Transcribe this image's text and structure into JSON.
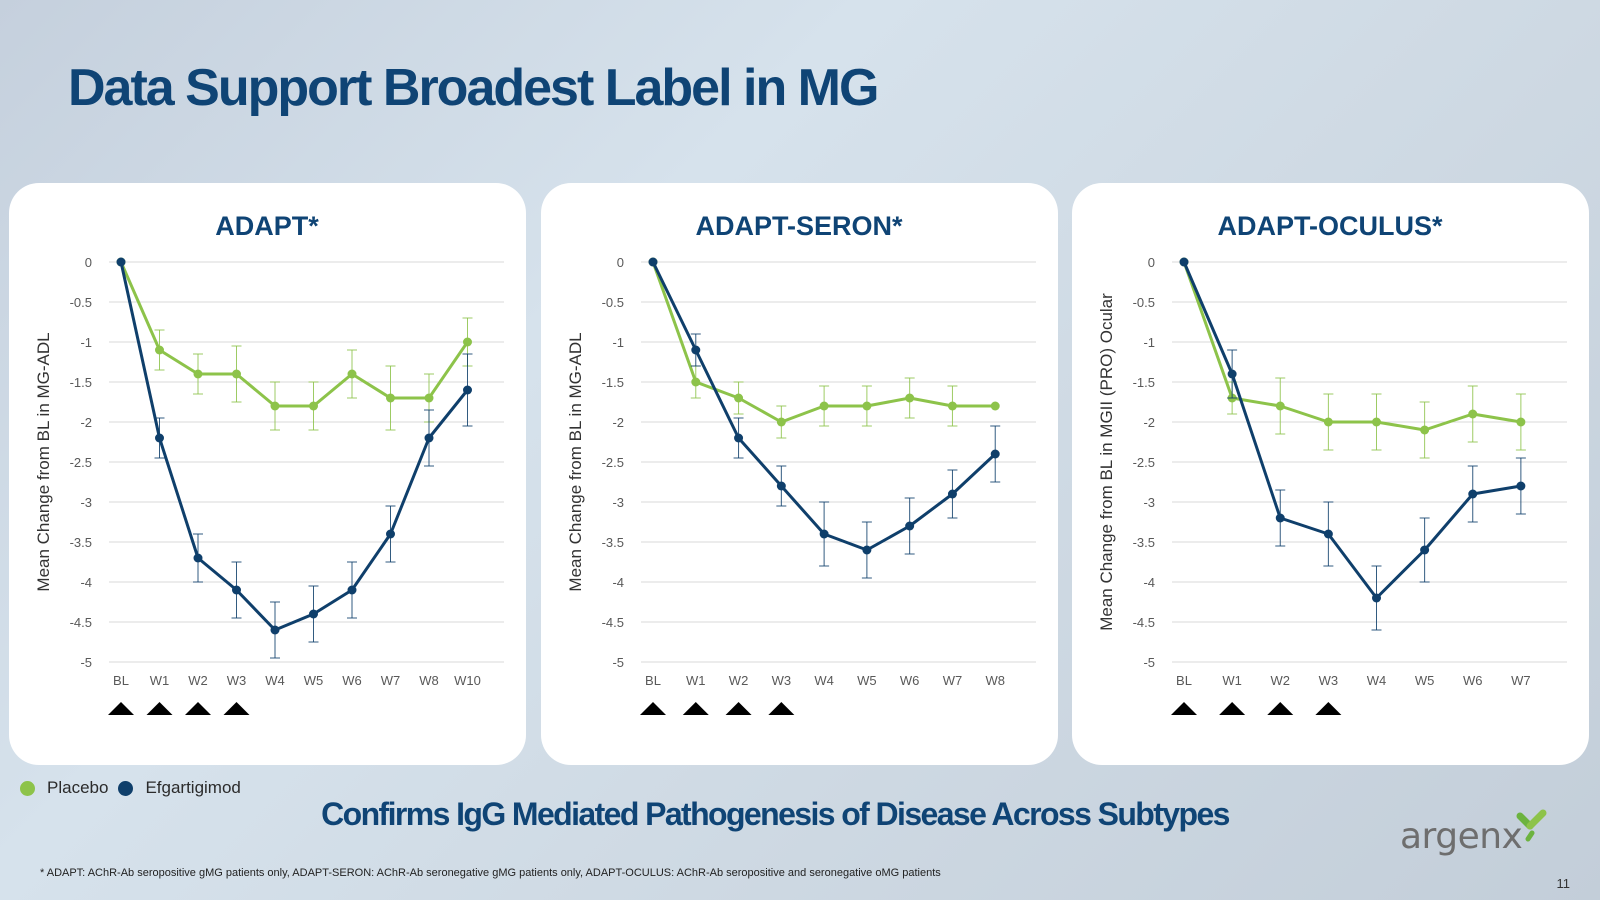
{
  "title": "Data Support Broadest Label in MG",
  "colors": {
    "placebo": "#8dc34a",
    "efgartigimod": "#0f3f6b",
    "title": "#0f4475"
  },
  "legend": {
    "placebo": "Placebo",
    "efgartigimod": "Efgartigimod"
  },
  "subtitle": "Confirms IgG Mediated Pathogenesis of Disease Across Subtypes",
  "footnote": "* ADAPT: AChR-Ab seropositive gMG patients only, ADAPT-SERON: AChR-Ab seronegative gMG patients only, ADAPT-OCULUS: AChR-Ab seropositive and seronegative oMG patients",
  "page_number": "11",
  "logo_text": "argenx",
  "chart_data": [
    {
      "type": "line",
      "title": "ADAPT*",
      "ylabel": "Mean Change from BL in MG-ADL",
      "ylim": [
        -5,
        0
      ],
      "yticks": [
        "0",
        "-0.5",
        "-1",
        "-1.5",
        "-2",
        "-2.5",
        "-3",
        "-3.5",
        "-4",
        "-4.5",
        "-5"
      ],
      "categories": [
        "BL",
        "W1",
        "W2",
        "W3",
        "W4",
        "W5",
        "W6",
        "W7",
        "W8",
        "W10"
      ],
      "dosing_weeks": [
        "BL",
        "W1",
        "W2",
        "W3"
      ],
      "series": [
        {
          "name": "Placebo",
          "values": [
            0,
            -1.1,
            -1.4,
            -1.4,
            -1.8,
            -1.8,
            -1.4,
            -1.7,
            -1.7,
            -1.0
          ],
          "error": [
            0,
            0.25,
            0.25,
            0.35,
            0.3,
            0.3,
            0.3,
            0.4,
            0.3,
            0.3
          ]
        },
        {
          "name": "Efgartigimod",
          "values": [
            0,
            -2.2,
            -3.7,
            -4.1,
            -4.6,
            -4.4,
            -4.1,
            -3.4,
            -2.2,
            -1.6
          ],
          "error": [
            0,
            0.25,
            0.3,
            0.35,
            0.35,
            0.35,
            0.35,
            0.35,
            0.35,
            0.45
          ]
        }
      ]
    },
    {
      "type": "line",
      "title": "ADAPT-SERON*",
      "ylabel": "Mean Change from BL in MG-ADL",
      "ylim": [
        -5,
        0
      ],
      "yticks": [
        "0",
        "-0.5",
        "-1",
        "-1.5",
        "-2",
        "-2.5",
        "-3",
        "-3.5",
        "-4",
        "-4.5",
        "-5"
      ],
      "categories": [
        "BL",
        "W1",
        "W2",
        "W3",
        "W4",
        "W5",
        "W6",
        "W7",
        "W8"
      ],
      "dosing_weeks": [
        "BL",
        "W1",
        "W2",
        "W3"
      ],
      "series": [
        {
          "name": "Placebo",
          "values": [
            0,
            -1.5,
            -1.7,
            -2.0,
            -1.8,
            -1.8,
            -1.7,
            -1.8,
            -1.8
          ],
          "error": [
            0,
            0.2,
            0.2,
            0.2,
            0.25,
            0.25,
            0.25,
            0.25,
            0
          ]
        },
        {
          "name": "Efgartigimod",
          "values": [
            0,
            -1.1,
            -2.2,
            -2.8,
            -3.4,
            -3.6,
            -3.3,
            -2.9,
            -2.4
          ],
          "error": [
            0,
            0.2,
            0.25,
            0.25,
            0.4,
            0.35,
            0.35,
            0.3,
            0.35
          ]
        }
      ]
    },
    {
      "type": "line",
      "title": "ADAPT-OCULUS*",
      "ylabel": "Mean Change from BL in MGII (PRO) Ocular",
      "ylim": [
        -5,
        0
      ],
      "yticks": [
        "0",
        "-0.5",
        "-1",
        "-1.5",
        "-2",
        "-2.5",
        "-3",
        "-3.5",
        "-4",
        "-4.5",
        "-5"
      ],
      "categories": [
        "BL",
        "W1",
        "W2",
        "W3",
        "W4",
        "W5",
        "W6",
        "W7"
      ],
      "dosing_weeks": [
        "BL",
        "W1",
        "W2",
        "W3"
      ],
      "series": [
        {
          "name": "Placebo",
          "values": [
            0,
            -1.7,
            -1.8,
            -2.0,
            -2.0,
            -2.1,
            -1.9,
            -2.0
          ],
          "error": [
            0,
            0.2,
            0.35,
            0.35,
            0.35,
            0.35,
            0.35,
            0.35
          ]
        },
        {
          "name": "Efgartigimod",
          "values": [
            0,
            -1.4,
            -3.2,
            -3.4,
            -4.2,
            -3.6,
            -2.9,
            -2.8
          ],
          "error": [
            0,
            0.3,
            0.35,
            0.4,
            0.4,
            0.4,
            0.35,
            0.35
          ]
        }
      ]
    }
  ]
}
